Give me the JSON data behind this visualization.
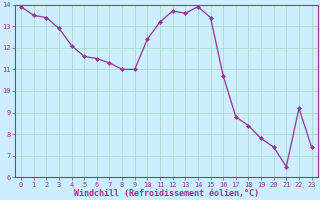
{
  "x": [
    0,
    1,
    2,
    3,
    4,
    5,
    6,
    7,
    8,
    9,
    10,
    11,
    12,
    13,
    14,
    15,
    16,
    17,
    18,
    19,
    20,
    21,
    22,
    23
  ],
  "y": [
    13.9,
    13.5,
    13.4,
    12.9,
    12.1,
    11.6,
    11.5,
    11.3,
    11.0,
    11.0,
    12.4,
    13.2,
    13.7,
    13.6,
    13.9,
    13.4,
    10.7,
    8.8,
    8.4,
    7.8,
    7.4,
    6.5,
    9.2,
    7.4
  ],
  "line_color": "#993399",
  "marker": "D",
  "marker_size": 2.0,
  "line_width": 0.9,
  "bg_color": "#cceeff",
  "grid_color": "#aaddcc",
  "xlabel": "Windchill (Refroidissement éolien,°C)",
  "xlabel_color": "#993399",
  "tick_color": "#993399",
  "ylim": [
    6,
    14
  ],
  "xlim": [
    -0.5,
    23.5
  ],
  "yticks": [
    6,
    7,
    8,
    9,
    10,
    11,
    12,
    13,
    14
  ],
  "xticks": [
    0,
    1,
    2,
    3,
    4,
    5,
    6,
    7,
    8,
    9,
    10,
    11,
    12,
    13,
    14,
    15,
    16,
    17,
    18,
    19,
    20,
    21,
    22,
    23
  ],
  "tick_fontsize": 5.0,
  "xlabel_fontsize": 6.0,
  "spine_color": "#993399"
}
